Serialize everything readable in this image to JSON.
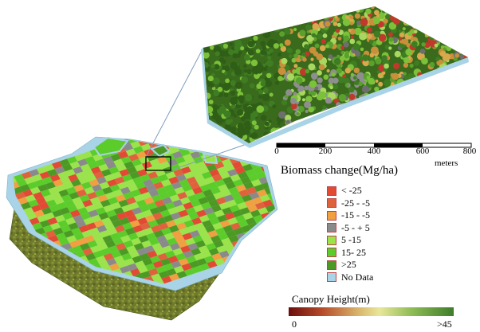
{
  "colors": {
    "loss_high": "#e34a33",
    "loss_mid": "#e0623c",
    "loss_low": "#f0a040",
    "stable": "#8a8a8a",
    "gain_low": "#9be34a",
    "gain_mid": "#5ccc2a",
    "gain_high": "#4c9a24",
    "no_data": "#a9d3e6",
    "frame_line": "#7f9fbf"
  },
  "legend": {
    "title": "Biomass change(Mg/ha)",
    "items": [
      {
        "label": "< -25",
        "color": "#e34a33"
      },
      {
        "label": "-25 - -5",
        "color": "#e0623c"
      },
      {
        "label": "-15 - -5",
        "color": "#f0a040"
      },
      {
        "label": "-5 - + 5",
        "color": "#8a8a8a"
      },
      {
        "label": "5 -15",
        "color": "#9be34a"
      },
      {
        "label": "15- 25",
        "color": "#5ccc2a"
      },
      {
        "label": ">25",
        "color": "#4c9a24"
      },
      {
        "label": "No Data",
        "color": "#a9d3e6"
      }
    ]
  },
  "scale_bar": {
    "ticks": [
      "0",
      "200",
      "400",
      "600",
      "800"
    ],
    "unit": "meters"
  },
  "canopy_height": {
    "title": "Canopy Height(m)",
    "min_label": "0",
    "max_label": ">45"
  }
}
